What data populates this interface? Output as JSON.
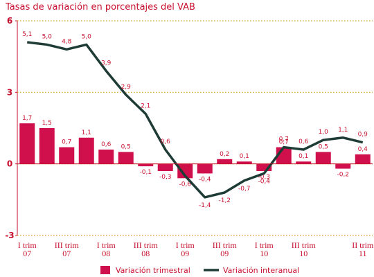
{
  "chart_data": {
    "type": "bar_line",
    "title": "Tasas de variación en porcentajes del VAB",
    "categories": [
      "I trim 07",
      null,
      "III trim 07",
      null,
      "I trim 08",
      null,
      "III trim 08",
      null,
      "I trim 09",
      null,
      "III trim 09",
      null,
      "I trim 10",
      null,
      "III trim 10",
      null,
      null,
      "II trim 11"
    ],
    "series": [
      {
        "name": "Variación trimestral",
        "type": "bar",
        "color": "#d0104c",
        "values": [
          1.7,
          1.5,
          0.7,
          1.1,
          0.6,
          0.5,
          -0.1,
          -0.3,
          -0.6,
          -0.4,
          0.2,
          0.1,
          -0.3,
          0.7,
          0.1,
          0.5,
          -0.2,
          0.4
        ],
        "value_labels": [
          "1,7",
          "1,5",
          "0,7",
          "1,1",
          "0,6",
          "0,5",
          "-0,1",
          "-0,3",
          "-0,6",
          "-0,4",
          "0,2",
          "0,1",
          "-0,3",
          "0,7",
          "0,1",
          "0,5",
          "-0,2",
          "0,4"
        ]
      },
      {
        "name": "Variación interanual",
        "type": "line",
        "color": "#1f3b35",
        "values": [
          5.1,
          5.0,
          4.8,
          5.0,
          3.9,
          2.9,
          2.1,
          0.6,
          -0.5,
          -1.4,
          -1.2,
          -0.7,
          -0.4,
          0.7,
          0.6,
          1.0,
          1.1,
          0.9
        ],
        "value_labels": [
          "5,1",
          "5,0",
          "4,8",
          "5,0",
          "3,9",
          "2,9",
          "2,1",
          "0,6",
          "-0,5",
          "-1,4",
          "-1,2",
          "-0,7",
          "-0,4",
          "0,7",
          "0,6",
          "1,0",
          "1,1",
          "0,9"
        ]
      }
    ],
    "ylim": [
      -3,
      6
    ],
    "yticks": [
      -3,
      0,
      3,
      6
    ],
    "grid": true
  }
}
